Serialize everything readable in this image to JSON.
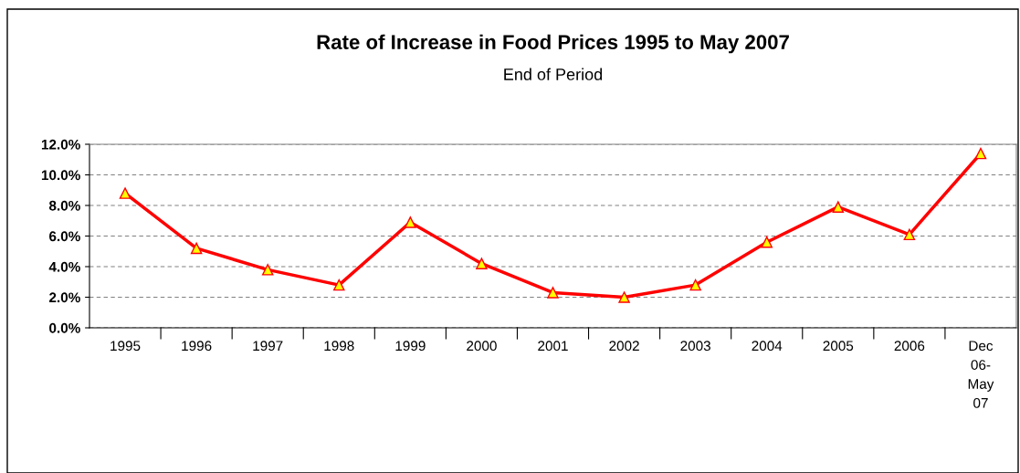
{
  "chart_data": {
    "type": "line",
    "title": "Rate of Increase in Food Prices 1995 to May 2007",
    "subtitle": "End of Period",
    "categories": [
      "1995",
      "1996",
      "1997",
      "1998",
      "1999",
      "2000",
      "2001",
      "2002",
      "2003",
      "2004",
      "2005",
      "2006",
      "Dec\n06-\nMay\n07"
    ],
    "series": [
      {
        "color": "#ff0000",
        "values": [
          8.8,
          5.2,
          3.8,
          2.8,
          6.9,
          4.2,
          2.3,
          2.0,
          2.8,
          5.6,
          7.9,
          6.1,
          11.4
        ]
      }
    ],
    "ylim": [
      0,
      12
    ],
    "yticks": [
      {
        "value": 0,
        "label": "0.0%"
      },
      {
        "value": 2,
        "label": "2.0%"
      },
      {
        "value": 4,
        "label": "4.0%"
      },
      {
        "value": 6,
        "label": "6.0%"
      },
      {
        "value": 8,
        "label": "8.0%"
      },
      {
        "value": 10,
        "label": "10.0%"
      },
      {
        "value": 12,
        "label": "12.0%"
      }
    ],
    "grid": "y",
    "marker": "triangle",
    "line_style": "solid",
    "legend": false
  }
}
